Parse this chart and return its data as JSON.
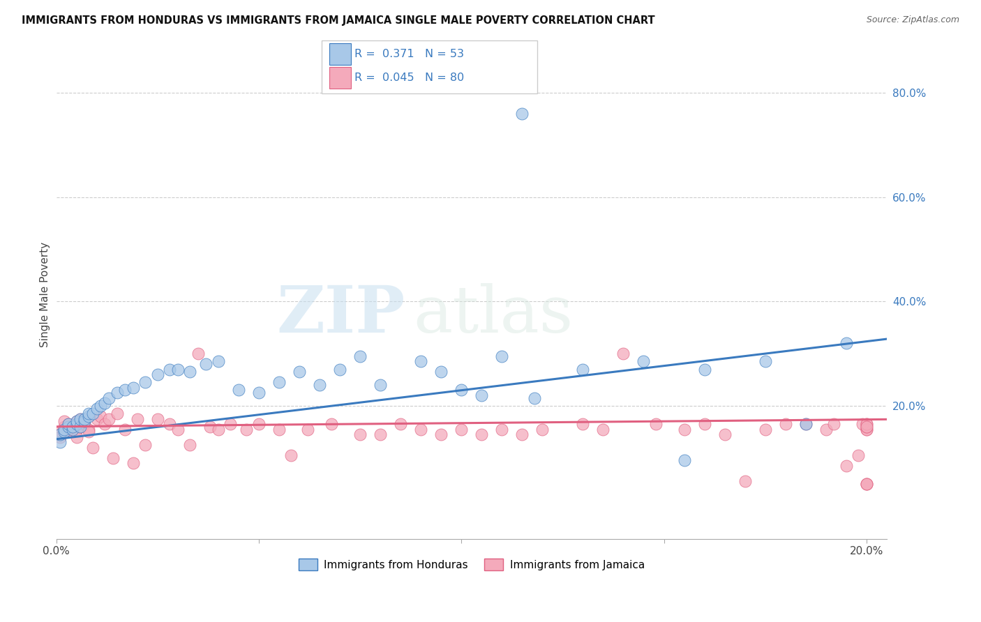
{
  "title": "IMMIGRANTS FROM HONDURAS VS IMMIGRANTS FROM JAMAICA SINGLE MALE POVERTY CORRELATION CHART",
  "source": "Source: ZipAtlas.com",
  "ylabel": "Single Male Poverty",
  "legend_label1": "Immigrants from Honduras",
  "legend_label2": "Immigrants from Jamaica",
  "r1": "0.371",
  "n1": "53",
  "r2": "0.045",
  "n2": "80",
  "color_honduras": "#a8c8e8",
  "color_jamaica": "#f4aabb",
  "line_color_honduras": "#3a7abf",
  "line_color_jamaica": "#e06080",
  "watermark_zip": "ZIP",
  "watermark_atlas": "atlas",
  "background_color": "#ffffff",
  "xlim": [
    0.0,
    0.205
  ],
  "ylim": [
    -0.055,
    0.88
  ],
  "honduras_x": [
    0.001,
    0.001,
    0.002,
    0.002,
    0.003,
    0.003,
    0.004,
    0.004,
    0.005,
    0.005,
    0.006,
    0.006,
    0.007,
    0.007,
    0.008,
    0.008,
    0.009,
    0.01,
    0.011,
    0.012,
    0.013,
    0.015,
    0.017,
    0.019,
    0.022,
    0.025,
    0.028,
    0.03,
    0.033,
    0.037,
    0.04,
    0.045,
    0.05,
    0.055,
    0.06,
    0.065,
    0.07,
    0.075,
    0.08,
    0.09,
    0.095,
    0.1,
    0.105,
    0.11,
    0.115,
    0.118,
    0.13,
    0.145,
    0.155,
    0.16,
    0.175,
    0.185,
    0.195
  ],
  "honduras_y": [
    0.13,
    0.145,
    0.15,
    0.155,
    0.16,
    0.165,
    0.155,
    0.16,
    0.165,
    0.17,
    0.16,
    0.175,
    0.17,
    0.175,
    0.18,
    0.185,
    0.185,
    0.195,
    0.2,
    0.205,
    0.215,
    0.225,
    0.23,
    0.235,
    0.245,
    0.26,
    0.27,
    0.27,
    0.265,
    0.28,
    0.285,
    0.23,
    0.225,
    0.245,
    0.265,
    0.24,
    0.27,
    0.295,
    0.24,
    0.285,
    0.265,
    0.23,
    0.22,
    0.295,
    0.76,
    0.215,
    0.27,
    0.285,
    0.095,
    0.27,
    0.285,
    0.165,
    0.32
  ],
  "jamaica_x": [
    0.001,
    0.001,
    0.001,
    0.002,
    0.002,
    0.002,
    0.003,
    0.003,
    0.003,
    0.004,
    0.004,
    0.005,
    0.005,
    0.005,
    0.006,
    0.006,
    0.007,
    0.007,
    0.008,
    0.008,
    0.009,
    0.01,
    0.011,
    0.012,
    0.013,
    0.014,
    0.015,
    0.017,
    0.019,
    0.02,
    0.022,
    0.025,
    0.028,
    0.03,
    0.033,
    0.035,
    0.038,
    0.04,
    0.043,
    0.047,
    0.05,
    0.055,
    0.058,
    0.062,
    0.068,
    0.075,
    0.08,
    0.085,
    0.09,
    0.095,
    0.1,
    0.105,
    0.11,
    0.115,
    0.12,
    0.13,
    0.135,
    0.14,
    0.148,
    0.155,
    0.16,
    0.165,
    0.17,
    0.175,
    0.18,
    0.185,
    0.19,
    0.192,
    0.195,
    0.198,
    0.199,
    0.2,
    0.2,
    0.2,
    0.2,
    0.2,
    0.2,
    0.2,
    0.2,
    0.2
  ],
  "jamaica_y": [
    0.15,
    0.145,
    0.14,
    0.155,
    0.16,
    0.17,
    0.155,
    0.165,
    0.15,
    0.16,
    0.155,
    0.17,
    0.155,
    0.14,
    0.175,
    0.16,
    0.165,
    0.175,
    0.155,
    0.15,
    0.12,
    0.175,
    0.18,
    0.165,
    0.175,
    0.1,
    0.185,
    0.155,
    0.09,
    0.175,
    0.125,
    0.175,
    0.165,
    0.155,
    0.125,
    0.3,
    0.16,
    0.155,
    0.165,
    0.155,
    0.165,
    0.155,
    0.105,
    0.155,
    0.165,
    0.145,
    0.145,
    0.165,
    0.155,
    0.145,
    0.155,
    0.145,
    0.155,
    0.145,
    0.155,
    0.165,
    0.155,
    0.3,
    0.165,
    0.155,
    0.165,
    0.145,
    0.055,
    0.155,
    0.165,
    0.165,
    0.155,
    0.165,
    0.085,
    0.105,
    0.165,
    0.155,
    0.165,
    0.05,
    0.155,
    0.16,
    0.05,
    0.165,
    0.16,
    0.05
  ],
  "trendline_honduras": [
    0.136,
    0.328
  ],
  "trendline_jamaica": [
    0.16,
    0.174
  ]
}
